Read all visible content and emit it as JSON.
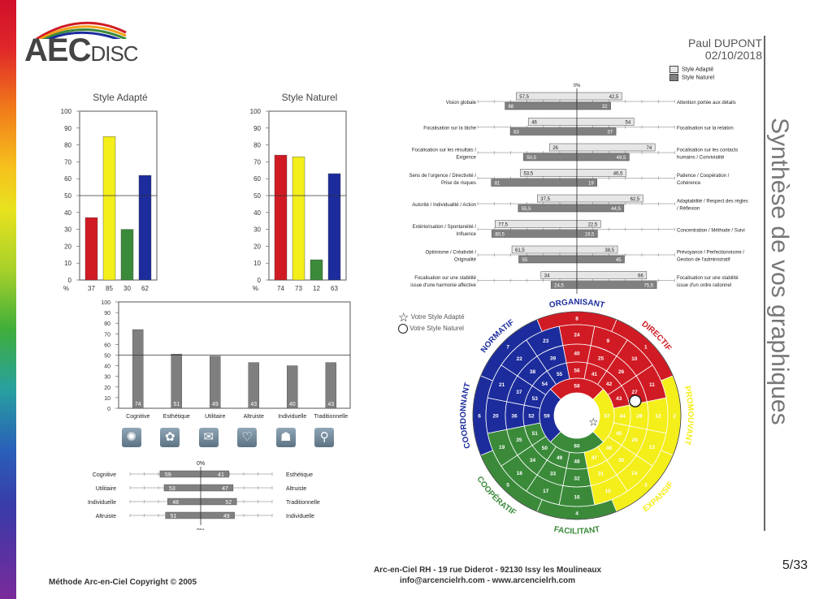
{
  "logo": {
    "big": "AEC",
    "small": "DISC"
  },
  "header": {
    "name": "Paul DUPONT",
    "date": "02/10/2018"
  },
  "side_title": "Synthèse de vos graphiques",
  "footer": {
    "copyright": "Méthode Arc-en-Ciel Copyright © 2005",
    "address": "Arc-en-Ciel RH - 19 rue Diderot - 92130 Issy les Moulineaux",
    "contact": "info@arcencielrh.com - www.arcencielrh.com",
    "page": "5/33"
  },
  "colors": {
    "red": "#d01b24",
    "yellow": "#f4ee1a",
    "green": "#3a8a3a",
    "blue": "#1c2c9c",
    "bar_grey": "#808080",
    "light_grey": "#e6e6e6"
  },
  "chart_data": [
    {
      "type": "bar",
      "title": "Style Adapté",
      "categories": [
        "37",
        "85",
        "30",
        "62"
      ],
      "values": [
        37,
        85,
        30,
        62
      ],
      "colors": [
        "#d01b24",
        "#f4ee1a",
        "#3a8a3a",
        "#1c2c9c"
      ],
      "ylim": [
        0,
        100
      ],
      "yticks": [
        0,
        10,
        20,
        30,
        40,
        50,
        60,
        70,
        80,
        90,
        100
      ],
      "ylabel": "%"
    },
    {
      "type": "bar",
      "title": "Style Naturel",
      "categories": [
        "74",
        "73",
        "12",
        "63"
      ],
      "values": [
        74,
        73,
        12,
        63
      ],
      "colors": [
        "#d01b24",
        "#f4ee1a",
        "#3a8a3a",
        "#1c2c9c"
      ],
      "ylim": [
        0,
        100
      ],
      "yticks": [
        0,
        10,
        20,
        30,
        40,
        50,
        60,
        70,
        80,
        90,
        100
      ],
      "ylabel": "%"
    },
    {
      "type": "bar",
      "title": "",
      "categories": [
        "Cognitive",
        "Esthétique",
        "Utilitaire",
        "Altruiste",
        "Individuelle",
        "Traditionnelle"
      ],
      "values": [
        74,
        51,
        49,
        43,
        40,
        43
      ],
      "ylim": [
        0,
        100
      ],
      "yticks": [
        0,
        10,
        20,
        30,
        40,
        50,
        60,
        70,
        80,
        90,
        100
      ]
    },
    {
      "type": "bar",
      "title": "",
      "zero_label": "0%",
      "rows": [
        {
          "left": "Cognitive",
          "right": "Esthétique",
          "lval": 59,
          "rval": 41
        },
        {
          "left": "Utilitaire",
          "right": "Altruiste",
          "lval": 53,
          "rval": 47
        },
        {
          "left": "Individuelle",
          "right": "Traditionnelle",
          "lval": 48,
          "rval": 52
        },
        {
          "left": "Altruiste",
          "right": "Individuelle",
          "lval": 51,
          "rval": 49
        }
      ]
    },
    {
      "type": "bar",
      "title": "",
      "zero_label": "0%",
      "legend": [
        "Style Adapté",
        "Style Naturel"
      ],
      "rows": [
        {
          "left": [
            "Vision globale"
          ],
          "right": [
            "Attention portée aux détails"
          ],
          "adapte": [
            57.5,
            42.5
          ],
          "naturel": [
            68,
            32
          ]
        },
        {
          "left": [
            "Focalisation sur la tâche"
          ],
          "right": [
            "Focalisation sur la relation"
          ],
          "adapte": [
            46,
            54
          ],
          "naturel": [
            63,
            37
          ]
        },
        {
          "left": [
            "Focalisation sur les résultats /",
            "Exigence"
          ],
          "right": [
            "Focalisation sur les contacts",
            "humains / Convivialité"
          ],
          "adapte": [
            26,
            74
          ],
          "naturel": [
            50.5,
            49.5
          ]
        },
        {
          "left": [
            "Sens de l'urgence / Directivité /",
            "Prise de risques"
          ],
          "right": [
            "Patience / Coopération /",
            "Cohérence"
          ],
          "adapte": [
            53.5,
            46.5
          ],
          "naturel": [
            81,
            19
          ]
        },
        {
          "left": [
            "Autorité / Individualité / Action"
          ],
          "right": [
            "Adaptabilité / Respect des règles",
            "/ Réflexion"
          ],
          "adapte": [
            37.5,
            62.5
          ],
          "naturel": [
            55.5,
            44.5
          ]
        },
        {
          "left": [
            "Extériorisation / Spontanéité /",
            "Influence"
          ],
          "right": [
            "Concentration / Méthode / Suivi"
          ],
          "adapte": [
            77.5,
            22.5
          ],
          "naturel": [
            80.5,
            19.5
          ]
        },
        {
          "left": [
            "Optimisme / Créativité /",
            "Originalité"
          ],
          "right": [
            "Prévoyance / Perfectionnisme /",
            "Gestion de l'administratif"
          ],
          "adapte": [
            61.5,
            38.5
          ],
          "naturel": [
            55,
            45
          ]
        },
        {
          "left": [
            "Focalisation sur une stabilité",
            "issue d'une harmonie affective"
          ],
          "right": [
            "Focalisation sur une stabilité",
            "issue d'un ordre rationnel"
          ],
          "adapte": [
            34,
            66
          ],
          "naturel": [
            24.5,
            75.5
          ]
        }
      ]
    }
  ],
  "wheel": {
    "legend_adapte": "Votre Style Adapté",
    "legend_naturel": "Votre Style Naturel",
    "labels": [
      "ORGANISANT",
      "DIRECTIF",
      "PROMOUVANT",
      "EXPANSIF",
      "FACILITANT",
      "COOPÉRATIF",
      "COORDONNANT",
      "NORMATIF"
    ],
    "outer_numbers": [
      "8",
      "1",
      "2",
      "3",
      "4",
      "5",
      "6",
      "7"
    ],
    "ring2": [
      "24",
      "9",
      "10",
      "11",
      "12",
      "13",
      "14",
      "15",
      "16",
      "17",
      "18",
      "19",
      "20",
      "21",
      "22",
      "23"
    ],
    "ring3": [
      "40",
      "25",
      "26",
      "27",
      "28",
      "29",
      "30",
      "31",
      "32",
      "33",
      "34",
      "35",
      "36",
      "37",
      "38",
      "39"
    ],
    "ring4": [
      "56",
      "41",
      "42",
      "43",
      "44",
      "45",
      "46",
      "47",
      "48",
      "49",
      "50",
      "51",
      "52",
      "53",
      "54",
      "55"
    ],
    "ring5": [
      "58",
      "57",
      "60",
      "59"
    ]
  }
}
